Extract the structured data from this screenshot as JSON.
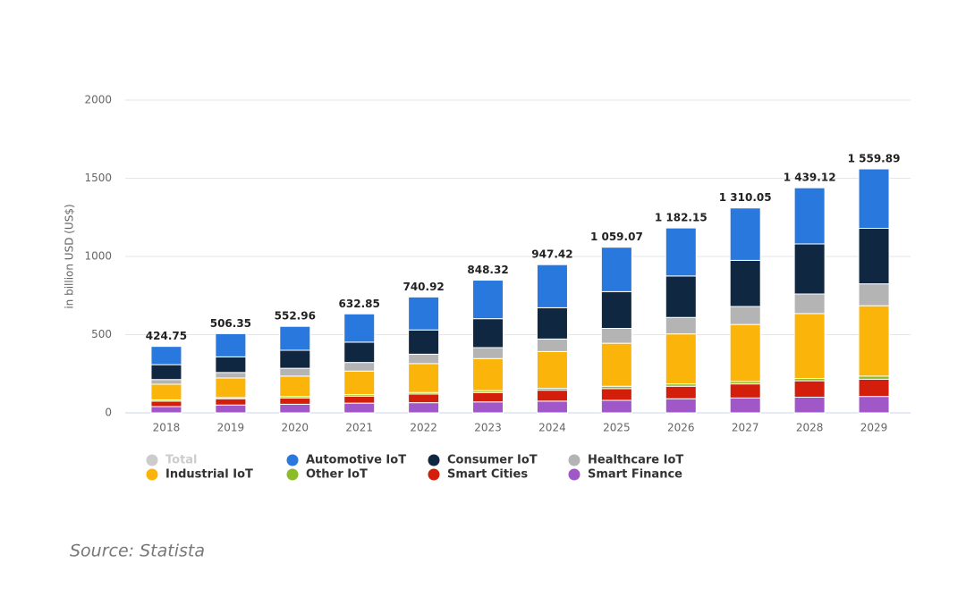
{
  "chart_data": {
    "type": "stacked-bar",
    "y_axis_label": "in billion USD (US$)",
    "categories": [
      "2018",
      "2019",
      "2020",
      "2021",
      "2022",
      "2023",
      "2024",
      "2025",
      "2026",
      "2027",
      "2028",
      "2029"
    ],
    "ylim": [
      0,
      2000
    ],
    "yticks": [
      0,
      500,
      1000,
      1500,
      2000
    ],
    "grid": true,
    "series": [
      {
        "name": "Total",
        "color": "#cccccc",
        "hidden": true,
        "values": [
          424.75,
          506.35,
          552.96,
          632.85,
          740.92,
          848.32,
          947.42,
          1059.07,
          1182.15,
          1310.05,
          1439.12,
          1559.89
        ],
        "value_labels": [
          "424.75",
          "506.35",
          "552.96",
          "632.85",
          "740.92",
          "848.32",
          "947.42",
          "1 059.07",
          "1 182.15",
          "1 310.05",
          "1 439.12",
          "1 559.89"
        ]
      },
      {
        "name": "Automotive IoT",
        "color": "#2878de",
        "values": [
          116.75,
          148.35,
          152.96,
          180.85,
          210.92,
          246.32,
          275.42,
          284.07,
          307.15,
          335.05,
          359.12,
          379.89
        ]
      },
      {
        "name": "Consumer IoT",
        "color": "#0f2740",
        "values": [
          95,
          100,
          115,
          130,
          155,
          185,
          200,
          235,
          265,
          295,
          320,
          355
        ]
      },
      {
        "name": "Healthcare IoT",
        "color": "#b4b4b4",
        "values": [
          30,
          35,
          50,
          55,
          60,
          70,
          80,
          95,
          105,
          115,
          125,
          140
        ]
      },
      {
        "name": "Industrial IoT",
        "color": "#fbb40a",
        "values": [
          100,
          125,
          130,
          150,
          185,
          205,
          235,
          275,
          320,
          365,
          415,
          450
        ]
      },
      {
        "name": "Other IoT",
        "color": "#8cbc28",
        "values": [
          8,
          8,
          10,
          10,
          10,
          12,
          12,
          15,
          15,
          15,
          15,
          20
        ]
      },
      {
        "name": "Smart Cities",
        "color": "#d21e0a",
        "values": [
          35,
          40,
          40,
          45,
          55,
          60,
          70,
          75,
          80,
          90,
          105,
          110
        ]
      },
      {
        "name": "Smart Finance",
        "color": "#a058c8",
        "values": [
          40,
          50,
          55,
          62,
          65,
          70,
          75,
          80,
          90,
          95,
          100,
          105
        ]
      }
    ]
  },
  "source": "Source: Statista"
}
